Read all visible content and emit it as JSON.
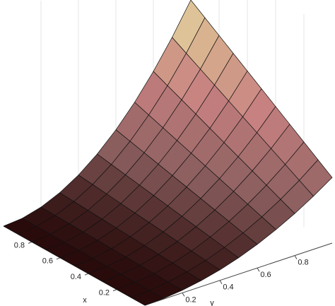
{
  "chart_data": {
    "type": "surface",
    "colormap": "pink",
    "grid": true,
    "x_label": "x",
    "y_label": "y",
    "x": [
      0,
      0.1,
      0.2,
      0.3,
      0.4,
      0.5,
      0.6,
      0.7,
      0.8,
      0.9,
      1
    ],
    "y": [
      0,
      0.1,
      0.2,
      0.3,
      0.4,
      0.5,
      0.6,
      0.7,
      0.8,
      0.9,
      1
    ],
    "z": [
      [
        0,
        0,
        0,
        0,
        0,
        0,
        0,
        0,
        0,
        0,
        0
      ],
      [
        0.004,
        0.0046,
        0.0052,
        0.0058,
        0.0064,
        0.007,
        0.0076,
        0.0082,
        0.0088,
        0.0094,
        0.01
      ],
      [
        0.016,
        0.0184,
        0.0208,
        0.0232,
        0.0256,
        0.028,
        0.0304,
        0.0328,
        0.0352,
        0.0376,
        0.04
      ],
      [
        0.036,
        0.0414,
        0.0468,
        0.0522,
        0.0576,
        0.063,
        0.0684,
        0.0738,
        0.0792,
        0.0846,
        0.09
      ],
      [
        0.064,
        0.0736,
        0.0832,
        0.0928,
        0.1024,
        0.112,
        0.1216,
        0.1312,
        0.1408,
        0.1504,
        0.16
      ],
      [
        0.1,
        0.115,
        0.13,
        0.145,
        0.16,
        0.175,
        0.19,
        0.205,
        0.22,
        0.235,
        0.25
      ],
      [
        0.144,
        0.1656,
        0.1872,
        0.2088,
        0.2304,
        0.252,
        0.2736,
        0.2952,
        0.3168,
        0.3384,
        0.36
      ],
      [
        0.196,
        0.2254,
        0.2548,
        0.2842,
        0.3136,
        0.343,
        0.3724,
        0.4018,
        0.4312,
        0.4606,
        0.49
      ],
      [
        0.256,
        0.2944,
        0.3328,
        0.3712,
        0.4096,
        0.448,
        0.4864,
        0.5248,
        0.5632,
        0.6016,
        0.64
      ],
      [
        0.324,
        0.3726,
        0.4212,
        0.4698,
        0.5184,
        0.567,
        0.6156,
        0.6642,
        0.7128,
        0.7614,
        0.81
      ],
      [
        0.4,
        0.46,
        0.52,
        0.58,
        0.64,
        0.7,
        0.76,
        0.82,
        0.88,
        0.94,
        1
      ]
    ],
    "xlim": [
      0,
      1
    ],
    "ylim": [
      0,
      1
    ],
    "zlim": [
      0,
      1
    ],
    "xticks": [
      0.2,
      0.4,
      0.6,
      0.8
    ],
    "yticks": [
      0.2,
      0.4,
      0.6,
      0.8
    ]
  }
}
